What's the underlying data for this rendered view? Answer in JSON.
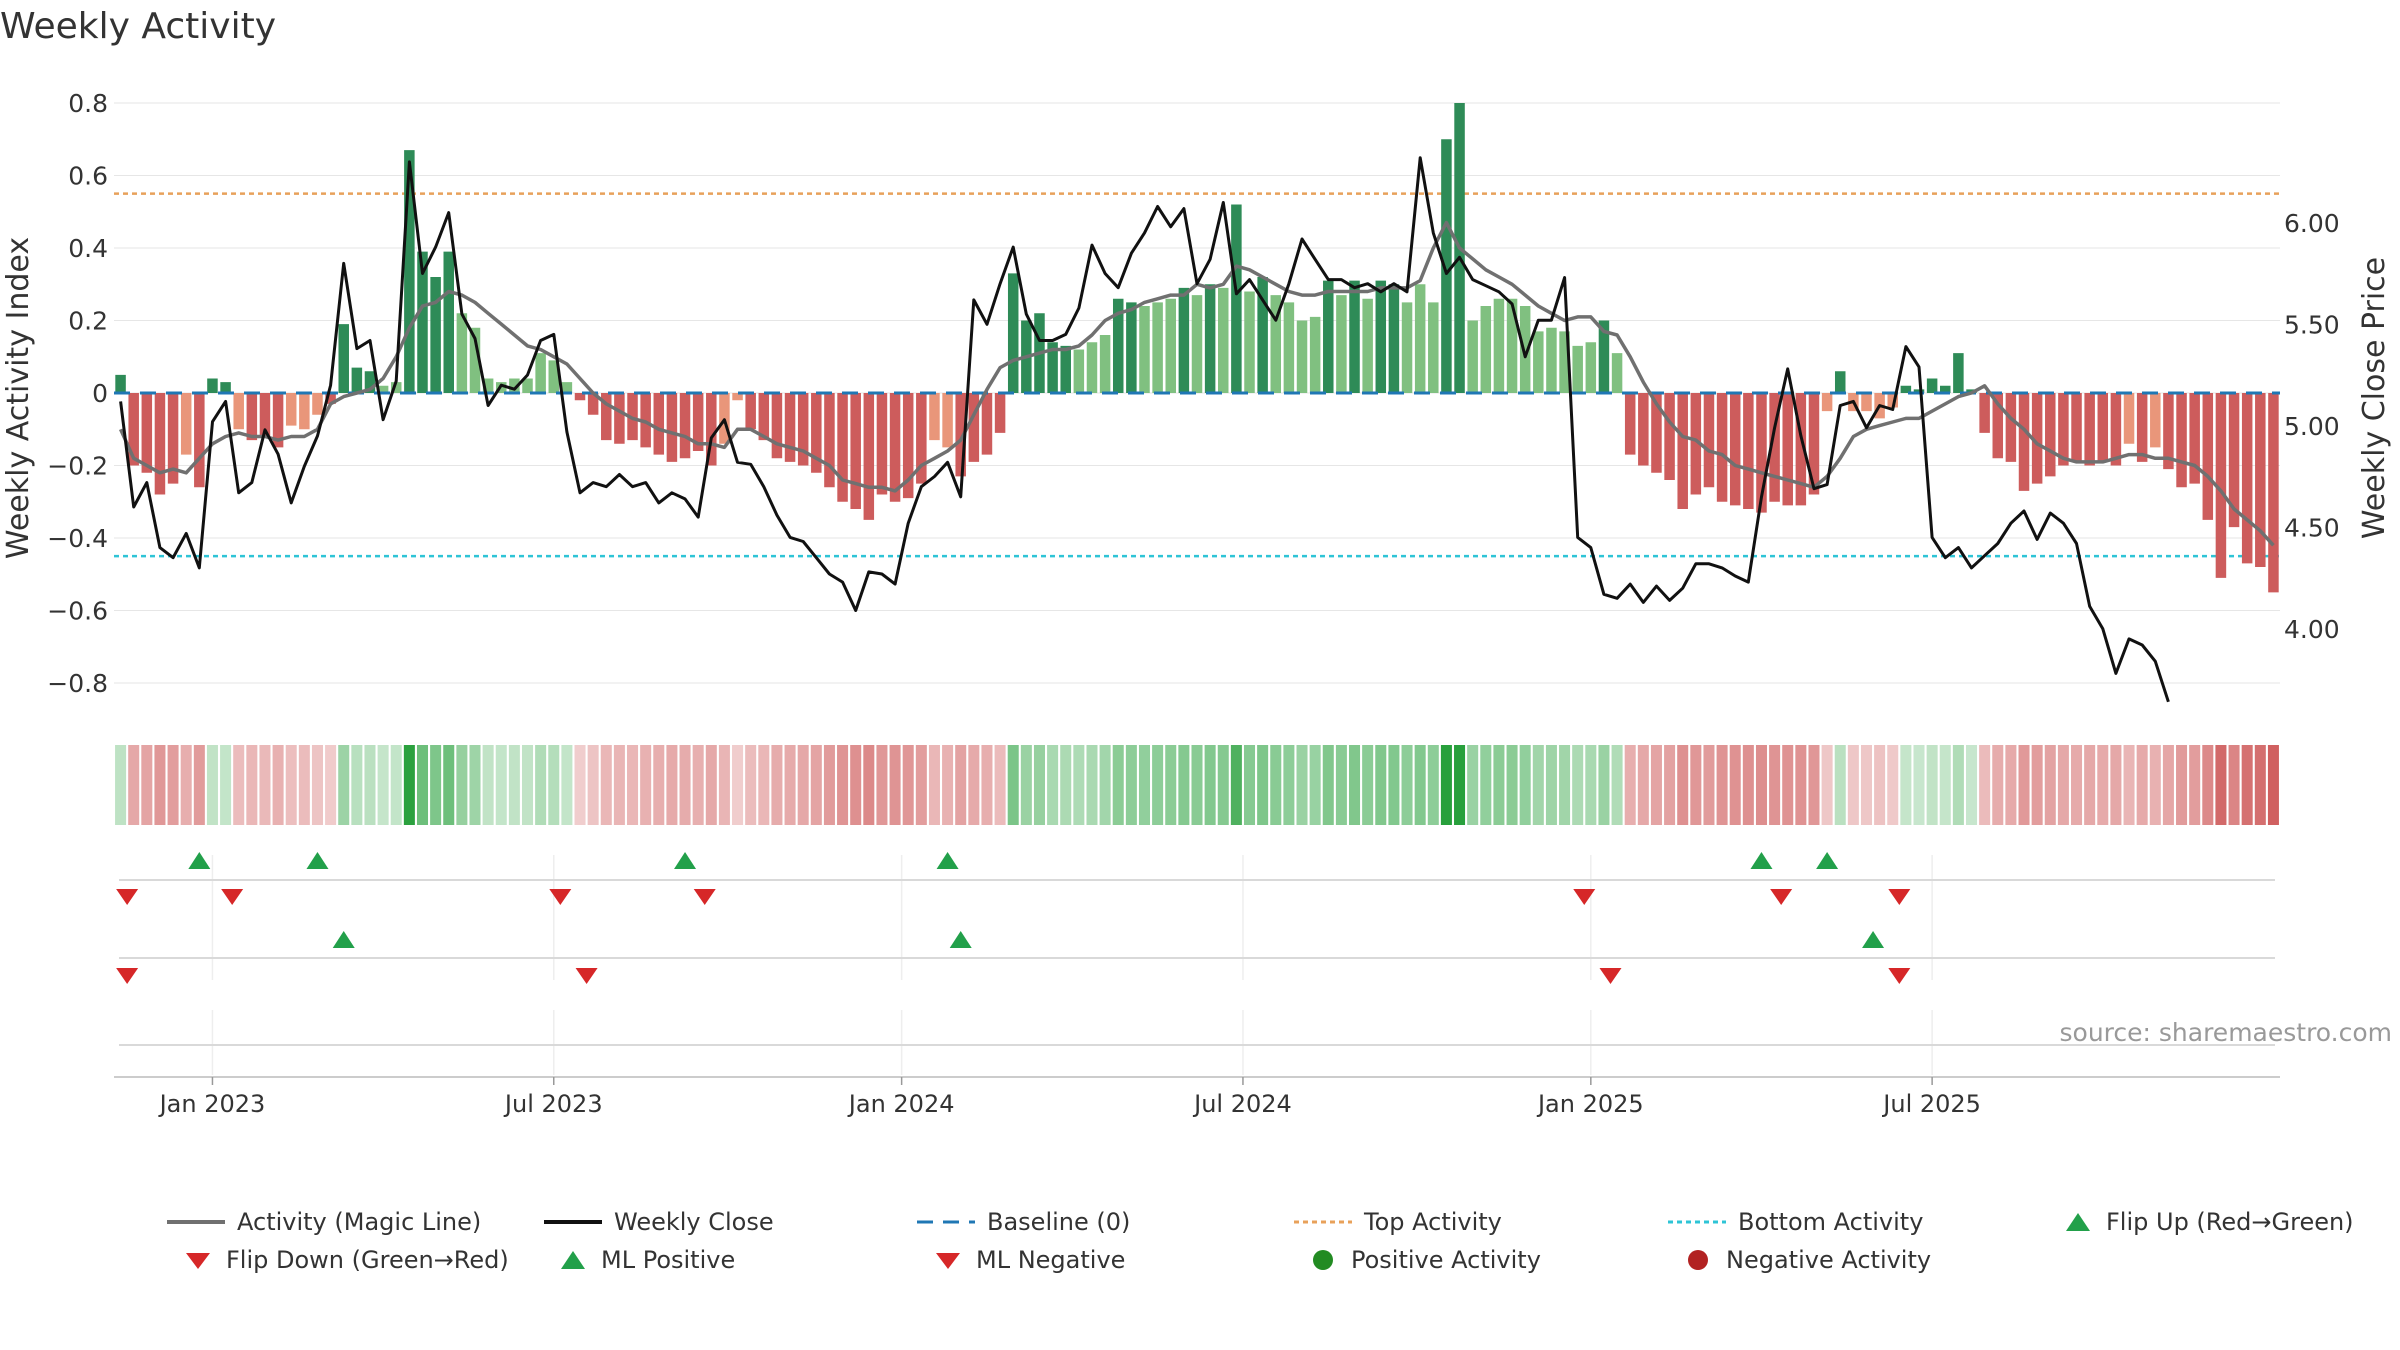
{
  "chart_data": {
    "type": "bar",
    "title": "Weekly Activity",
    "ylabel_left": "Weekly Activity Index",
    "ylabel_right": "Weekly Close Price",
    "ylim_left": [
      -0.88,
      0.8
    ],
    "ylim_right": [
      3.59,
      6.59
    ],
    "left_ticks": [
      0.8,
      0.6,
      0.4,
      0.2,
      0,
      -0.2,
      -0.4,
      -0.6,
      -0.8
    ],
    "left_tick_labels": [
      "0.8",
      "0.6",
      "0.4",
      "0.2",
      "0",
      "−0.2",
      "−0.4",
      "−0.6",
      "−0.8"
    ],
    "right_ticks": [
      6.0,
      5.5,
      5.0,
      4.5,
      4.0
    ],
    "right_tick_labels": [
      "6.00",
      "5.50",
      "5.00",
      "4.50",
      "4.00"
    ],
    "x_ticks": [
      "Jan 2023",
      "Jul 2023",
      "Jan 2024",
      "Jul 2024",
      "Jan 2025",
      "Jul 2025"
    ],
    "x_tick_weeks": [
      7.5,
      33.5,
      60,
      86,
      112.5,
      138.5
    ],
    "top_activity": 0.55,
    "bottom_activity": -0.45,
    "baseline": 0,
    "activity_index": [
      0.05,
      -0.2,
      -0.22,
      -0.28,
      -0.25,
      -0.17,
      -0.26,
      0.04,
      0.03,
      -0.1,
      -0.13,
      -0.12,
      -0.15,
      -0.09,
      -0.1,
      -0.06,
      -0.03,
      0.19,
      0.07,
      0.06,
      0.02,
      0.03,
      0.67,
      0.39,
      0.32,
      0.39,
      0.22,
      0.18,
      0.04,
      0.03,
      0.04,
      0.04,
      0.11,
      0.09,
      0.03,
      -0.02,
      -0.06,
      -0.13,
      -0.14,
      -0.13,
      -0.15,
      -0.17,
      -0.19,
      -0.18,
      -0.16,
      -0.2,
      -0.14,
      -0.02,
      -0.1,
      -0.13,
      -0.18,
      -0.19,
      -0.2,
      -0.22,
      -0.26,
      -0.3,
      -0.32,
      -0.35,
      -0.28,
      -0.3,
      -0.29,
      -0.25,
      -0.13,
      -0.15,
      -0.23,
      -0.19,
      -0.17,
      -0.11,
      0.33,
      0.2,
      0.22,
      0.14,
      0.13,
      0.12,
      0.14,
      0.16,
      0.26,
      0.25,
      0.24,
      0.25,
      0.26,
      0.29,
      0.27,
      0.3,
      0.29,
      0.52,
      0.28,
      0.32,
      0.27,
      0.25,
      0.2,
      0.21,
      0.31,
      0.27,
      0.31,
      0.26,
      0.31,
      0.3,
      0.25,
      0.3,
      0.25,
      0.7,
      0.8,
      0.2,
      0.24,
      0.26,
      0.26,
      0.24,
      0.17,
      0.18,
      0.17,
      0.13,
      0.14,
      0.2,
      0.11,
      -0.17,
      -0.2,
      -0.22,
      -0.24,
      -0.32,
      -0.28,
      -0.26,
      -0.3,
      -0.31,
      -0.32,
      -0.33,
      -0.3,
      -0.31,
      -0.31,
      -0.28,
      -0.05,
      0.06,
      -0.05,
      -0.05,
      -0.07,
      -0.04,
      0.02,
      0.01,
      0.04,
      0.02,
      0.11,
      0.01,
      -0.11,
      -0.18,
      -0.19,
      -0.27,
      -0.25,
      -0.23,
      -0.2,
      -0.19,
      -0.2,
      -0.19,
      -0.2,
      -0.14,
      -0.19,
      -0.15,
      -0.21,
      -0.26,
      -0.25,
      -0.35,
      -0.51,
      -0.37,
      -0.47,
      -0.48,
      -0.55
    ],
    "magic_line": [
      -0.1,
      -0.18,
      -0.2,
      -0.22,
      -0.21,
      -0.22,
      -0.18,
      -0.14,
      -0.12,
      -0.11,
      -0.12,
      -0.12,
      -0.13,
      -0.12,
      -0.12,
      -0.1,
      -0.03,
      -0.01,
      0.0,
      0.01,
      0.04,
      0.1,
      0.18,
      0.24,
      0.25,
      0.28,
      0.27,
      0.25,
      0.22,
      0.19,
      0.16,
      0.13,
      0.12,
      0.1,
      0.08,
      0.04,
      0.0,
      -0.03,
      -0.05,
      -0.07,
      -0.08,
      -0.1,
      -0.11,
      -0.12,
      -0.14,
      -0.14,
      -0.15,
      -0.1,
      -0.1,
      -0.12,
      -0.14,
      -0.15,
      -0.16,
      -0.18,
      -0.2,
      -0.24,
      -0.25,
      -0.26,
      -0.26,
      -0.27,
      -0.24,
      -0.2,
      -0.18,
      -0.16,
      -0.13,
      -0.06,
      0.01,
      0.07,
      0.09,
      0.1,
      0.11,
      0.12,
      0.12,
      0.13,
      0.16,
      0.2,
      0.22,
      0.23,
      0.25,
      0.26,
      0.27,
      0.27,
      0.3,
      0.29,
      0.3,
      0.35,
      0.34,
      0.32,
      0.3,
      0.28,
      0.27,
      0.27,
      0.28,
      0.28,
      0.28,
      0.28,
      0.29,
      0.29,
      0.29,
      0.31,
      0.4,
      0.47,
      0.4,
      0.37,
      0.34,
      0.32,
      0.3,
      0.27,
      0.24,
      0.22,
      0.2,
      0.21,
      0.21,
      0.17,
      0.16,
      0.1,
      0.03,
      -0.03,
      -0.08,
      -0.12,
      -0.13,
      -0.16,
      -0.17,
      -0.2,
      -0.21,
      -0.22,
      -0.23,
      -0.24,
      -0.25,
      -0.26,
      -0.23,
      -0.18,
      -0.12,
      -0.1,
      -0.09,
      -0.08,
      -0.07,
      -0.07,
      -0.05,
      -0.03,
      -0.01,
      0.0,
      0.02,
      -0.03,
      -0.07,
      -0.1,
      -0.14,
      -0.16,
      -0.18,
      -0.19,
      -0.19,
      -0.19,
      -0.18,
      -0.17,
      -0.17,
      -0.18,
      -0.18,
      -0.19,
      -0.2,
      -0.23,
      -0.27,
      -0.32,
      -0.35,
      -0.38,
      -0.42
    ],
    "weekly_close": [
      5.12,
      4.6,
      4.72,
      4.4,
      4.35,
      4.47,
      4.3,
      5.02,
      5.12,
      4.67,
      4.72,
      4.98,
      4.86,
      4.62,
      4.8,
      4.95,
      5.2,
      5.8,
      5.38,
      5.42,
      5.03,
      5.22,
      6.3,
      5.75,
      5.88,
      6.05,
      5.55,
      5.43,
      5.1,
      5.2,
      5.18,
      5.25,
      5.42,
      5.45,
      4.97,
      4.67,
      4.72,
      4.7,
      4.76,
      4.7,
      4.72,
      4.62,
      4.67,
      4.64,
      4.55,
      4.94,
      5.03,
      4.82,
      4.81,
      4.7,
      4.56,
      4.45,
      4.43,
      4.35,
      4.27,
      4.23,
      4.09,
      4.28,
      4.27,
      4.22,
      4.52,
      4.7,
      4.75,
      4.82,
      4.65,
      5.62,
      5.5,
      5.7,
      5.88,
      5.55,
      5.42,
      5.42,
      5.45,
      5.58,
      5.89,
      5.75,
      5.68,
      5.85,
      5.95,
      6.08,
      5.98,
      6.07,
      5.7,
      5.82,
      6.1,
      5.65,
      5.72,
      5.62,
      5.52,
      5.7,
      5.92,
      5.82,
      5.72,
      5.72,
      5.68,
      5.7,
      5.66,
      5.7,
      5.66,
      6.32,
      5.95,
      5.75,
      5.83,
      5.72,
      5.69,
      5.66,
      5.6,
      5.34,
      5.52,
      5.52,
      5.73,
      4.45,
      4.4,
      4.17,
      4.15,
      4.22,
      4.13,
      4.21,
      4.14,
      4.2,
      4.32,
      4.32,
      4.3,
      4.26,
      4.23,
      4.65,
      4.99,
      5.28,
      4.95,
      4.69,
      4.71,
      5.1,
      5.12,
      4.99,
      5.1,
      5.08,
      5.39,
      5.29,
      4.45,
      4.35,
      4.4,
      4.3,
      4.36,
      4.42,
      4.52,
      4.58,
      4.44,
      4.57,
      4.52,
      4.42,
      4.11,
      4.0,
      3.78,
      3.95,
      3.92,
      3.84,
      3.64
    ],
    "ml_positive_weeks": [
      6.5,
      15.5,
      43.5,
      63.5,
      125.5,
      130.5
    ],
    "ml_negative_weeks": [
      1,
      9,
      34,
      45,
      112,
      127,
      136
    ],
    "flip_up_weeks": [
      17.5,
      64.5,
      134
    ],
    "flip_down_weeks": [
      1,
      36,
      114,
      136
    ],
    "legend": [
      "Activity (Magic Line)",
      "Weekly Close",
      "Baseline (0)",
      "Top Activity",
      "Bottom Activity",
      "Flip Up (Red→Green)",
      "Flip Down (Green→Red)",
      "ML Positive",
      "ML Negative",
      "Positive Activity",
      "Negative Activity"
    ],
    "legend_placement": "bottom",
    "source": "source: sharemaestro.com",
    "grid": true
  },
  "colors": {
    "dark_green": "#2e8b57",
    "light_green": "#80c080",
    "dark_red": "#cd5c5c",
    "light_red": "#e9967a",
    "magic_line": "#707070",
    "close_line": "#111111",
    "baseline": "#1f77b4",
    "top_line": "#e8a15a",
    "bottom_line": "#2ec4d6",
    "marker_up": "#22a04a",
    "marker_down": "#d62728",
    "positive_dot": "#228b22",
    "negative_dot": "#b22222"
  }
}
